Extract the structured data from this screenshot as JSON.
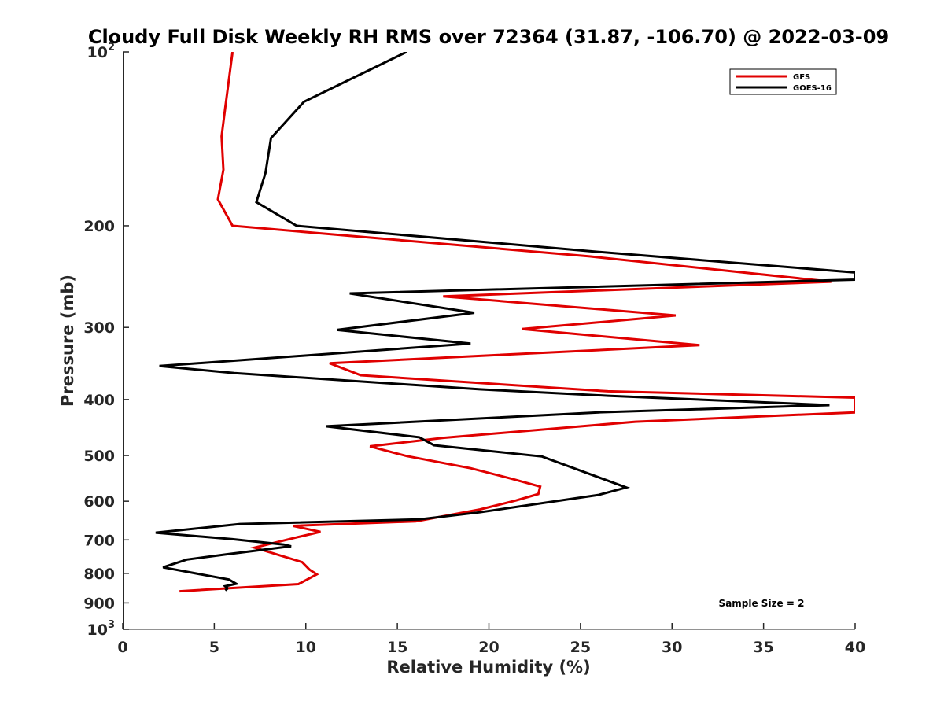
{
  "chart_data": {
    "type": "line",
    "title": "Cloudy Full Disk Weekly RH RMS over 72364 (31.87, -106.70) @ 2022-03-09",
    "xlabel": "Relative Humidity (%)",
    "ylabel": "Pressure (mb)",
    "xlim": [
      0,
      40
    ],
    "ylim": [
      100,
      1000
    ],
    "yscale": "log",
    "y_reversed": true,
    "grid": false,
    "legend_position": "top-right",
    "x_ticks": [
      "0",
      "5",
      "10",
      "15",
      "20",
      "25",
      "30",
      "35",
      "40"
    ],
    "y_ticks": [
      {
        "value": 100,
        "base": "10",
        "exp": "2"
      },
      {
        "value": 200,
        "label": "200"
      },
      {
        "value": 300,
        "label": "300"
      },
      {
        "value": 400,
        "label": "400"
      },
      {
        "value": 500,
        "label": "500"
      },
      {
        "value": 600,
        "label": "600"
      },
      {
        "value": 700,
        "label": "700"
      },
      {
        "value": 800,
        "label": "800"
      },
      {
        "value": 900,
        "label": "900"
      },
      {
        "value": 1000,
        "base": "10",
        "exp": "3"
      }
    ],
    "annotation": "Sample Size = 2",
    "series": [
      {
        "name": "GFS",
        "color": "#e00000",
        "points": [
          [
            6.0,
            100
          ],
          [
            5.6,
            125
          ],
          [
            5.4,
            140
          ],
          [
            5.5,
            160
          ],
          [
            5.2,
            180
          ],
          [
            6.0,
            200
          ],
          [
            25.5,
            226
          ],
          [
            38.7,
            250
          ],
          [
            17.5,
            265
          ],
          [
            30.2,
            286
          ],
          [
            21.8,
            302
          ],
          [
            31.5,
            322
          ],
          [
            11.3,
            346
          ],
          [
            13.0,
            363
          ],
          [
            26.5,
            387
          ],
          [
            40,
            397
          ],
          [
            40,
            421
          ],
          [
            28.0,
            437
          ],
          [
            17.5,
            466
          ],
          [
            13.5,
            482
          ],
          [
            15.5,
            501
          ],
          [
            19.0,
            526
          ],
          [
            21.2,
            548
          ],
          [
            22.8,
            566
          ],
          [
            22.7,
            583
          ],
          [
            21.5,
            598
          ],
          [
            19.5,
            620
          ],
          [
            16.0,
            650
          ],
          [
            9.3,
            662
          ],
          [
            10.8,
            678
          ],
          [
            9.5,
            693
          ],
          [
            7.2,
            722
          ],
          [
            9.8,
            765
          ],
          [
            10.2,
            788
          ],
          [
            10.6,
            803
          ],
          [
            9.6,
            835
          ],
          [
            3.1,
            859
          ]
        ]
      },
      {
        "name": "GOES-16",
        "color": "#000000",
        "points": [
          [
            15.5,
            100
          ],
          [
            9.9,
            122
          ],
          [
            8.1,
            141
          ],
          [
            7.8,
            162
          ],
          [
            7.3,
            182
          ],
          [
            9.5,
            200
          ],
          [
            26.0,
            222
          ],
          [
            40,
            241
          ],
          [
            40,
            248
          ],
          [
            12.4,
            262
          ],
          [
            19.2,
            283
          ],
          [
            11.7,
            303
          ],
          [
            19.0,
            320
          ],
          [
            2.0,
            350
          ],
          [
            6.1,
            360
          ],
          [
            19.5,
            384
          ],
          [
            26.5,
            394
          ],
          [
            38.6,
            409
          ],
          [
            26.0,
            421
          ],
          [
            11.1,
            445
          ],
          [
            16.2,
            465
          ],
          [
            17.0,
            480
          ],
          [
            22.9,
            502
          ],
          [
            27.5,
            568
          ],
          [
            26.0,
            585
          ],
          [
            19.5,
            627
          ],
          [
            16.2,
            645
          ],
          [
            6.4,
            657
          ],
          [
            1.8,
            680
          ],
          [
            6.0,
            698
          ],
          [
            8.8,
            713
          ],
          [
            9.2,
            718
          ],
          [
            5.6,
            742
          ],
          [
            3.5,
            757
          ],
          [
            2.2,
            781
          ],
          [
            5.8,
            820
          ],
          [
            6.2,
            834
          ],
          [
            5.6,
            842
          ],
          [
            5.7,
            847
          ],
          [
            5.7,
            851
          ],
          [
            5.6,
            856
          ]
        ]
      }
    ]
  }
}
